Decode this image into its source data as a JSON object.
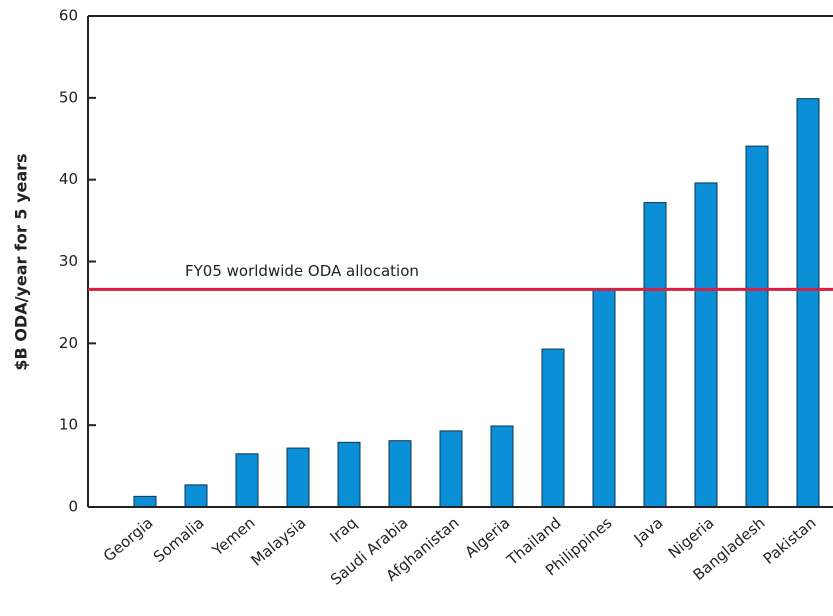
{
  "chart_data": {
    "type": "bar",
    "y_label": "$B ODA/year for 5 years",
    "categories": [
      "Georgia",
      "Somalia",
      "Yemen",
      "Malaysia",
      "Iraq",
      "Saudi Arabia",
      "Afghanistan",
      "Algeria",
      "Thailand",
      "Philippines",
      "Java",
      "Nigeria",
      "Bangladesh",
      "Pakistan"
    ],
    "values": [
      1.3,
      2.7,
      6.5,
      7.2,
      7.9,
      8.1,
      9.3,
      9.9,
      19.3,
      26.6,
      37.2,
      39.6,
      44.1,
      49.9
    ],
    "color": "#0b8fd6",
    "reference_line": {
      "value": 26.6,
      "label": "FY05 worldwide ODA allocation",
      "color": "#d6203f"
    },
    "ylim": [
      0,
      60
    ],
    "yticks": [
      0,
      10,
      20,
      30,
      40,
      50,
      60
    ]
  }
}
